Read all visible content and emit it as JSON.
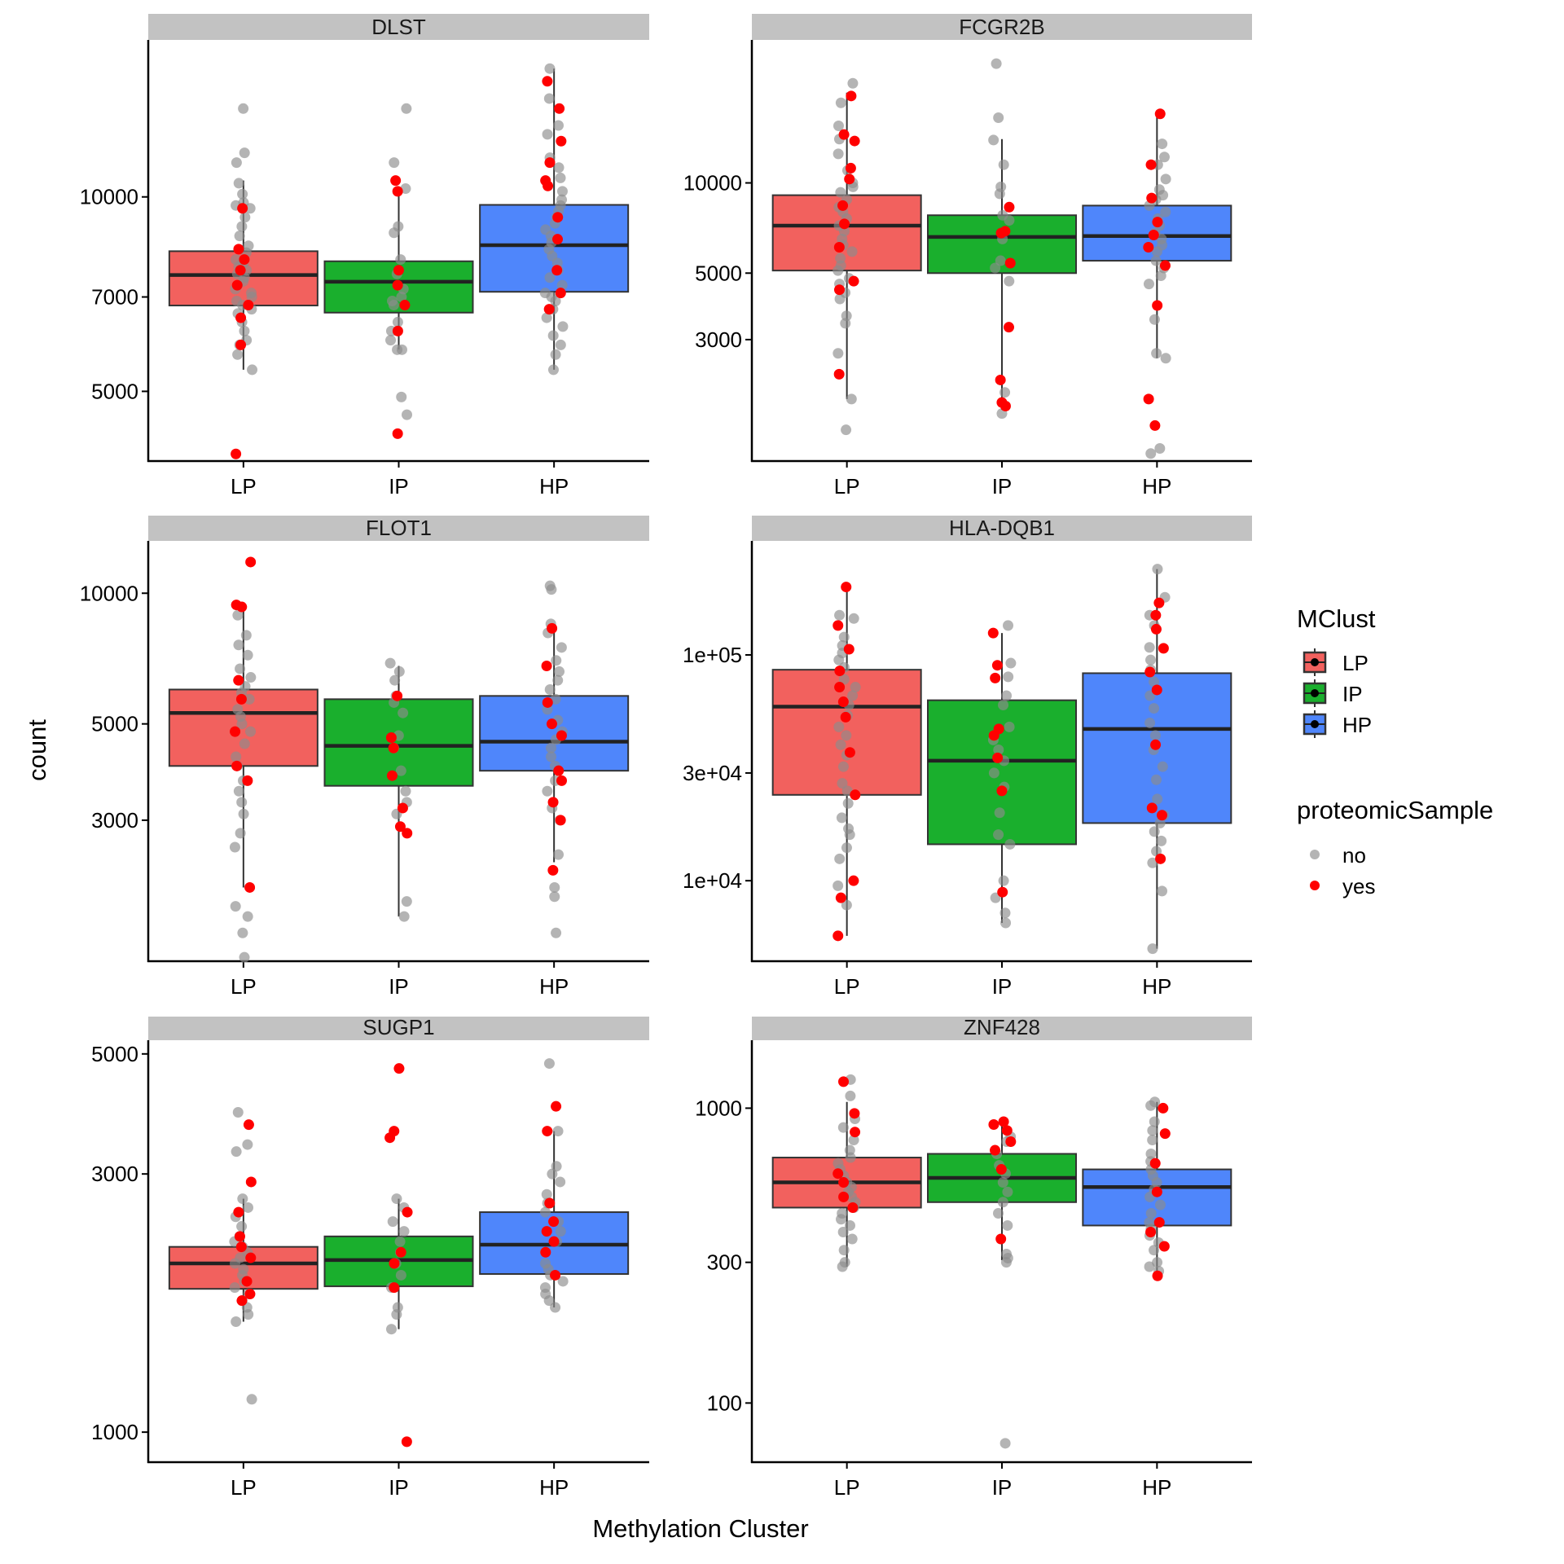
{
  "chart_data": {
    "type": "box",
    "xlabel": "Methylation Cluster",
    "ylabel": "count",
    "yscale": "log10",
    "categories": [
      "LP",
      "IP",
      "HP"
    ],
    "fill_colors": {
      "LP": "#F2615E",
      "IP": "#1AAF2D",
      "HP": "#4F86FB"
    },
    "point_colors": {
      "no": "#8C8C8C",
      "yes": "#FF0000"
    },
    "legends": [
      {
        "title": "MClust",
        "type": "fill",
        "entries": [
          "LP",
          "IP",
          "HP"
        ],
        "placement": "right"
      },
      {
        "title": "proteomicSample",
        "type": "point",
        "entries": [
          "no",
          "yes"
        ],
        "placement": "right"
      }
    ],
    "panels": [
      {
        "title": "DLST",
        "yticks": [
          5000,
          7000,
          10000
        ],
        "ytick_labels": [
          "5000",
          "7000",
          "10000"
        ],
        "ylim": [
          3900,
          17500
        ],
        "boxes": {
          "LP": {
            "whisker_low": 5400,
            "q1": 6790,
            "median": 7570,
            "q3": 8240,
            "whisker_high": 10600
          },
          "IP": {
            "whisker_low": 5800,
            "q1": 6620,
            "median": 7390,
            "q3": 7950,
            "whisker_high": 10300
          },
          "HP": {
            "whisker_low": 5400,
            "q1": 7130,
            "median": 8420,
            "q3": 9720,
            "whisker_high": 15800
          }
        },
        "points": {
          "LP": {
            "no": [
              13700,
              11700,
              11300,
              10500,
              10100,
              9800,
              9700,
              9600,
              9300,
              9000,
              8700,
              8400,
              8200,
              8000,
              7900,
              7800,
              7700,
              7600,
              7500,
              7400,
              7300,
              7200,
              7100,
              7000,
              6900,
              6800,
              6700,
              6600,
              6400,
              6200,
              6000,
              5900,
              5700,
              5400
            ],
            "yes": [
              9600,
              8300,
              8000,
              7700,
              7300,
              6800,
              6500,
              5900,
              4000
            ]
          },
          "IP": {
            "no": [
              13700,
              11300,
              10300,
              9000,
              8800,
              8000,
              7600,
              7200,
              7000,
              6900,
              6800,
              6400,
              6200,
              6000,
              5800,
              5800,
              4900,
              4600
            ],
            "yes": [
              10600,
              10200,
              7700,
              7300,
              6800,
              6200,
              4300
            ]
          },
          "HP": {
            "no": [
              15800,
              14200,
              12900,
              12500,
              11500,
              11100,
              10700,
              10200,
              9900,
              9700,
              9500,
              9300,
              9100,
              8900,
              8700,
              8500,
              8300,
              8100,
              7900,
              7700,
              7500,
              7300,
              7100,
              7000,
              6900,
              6700,
              6500,
              6300,
              6100,
              5900,
              5700,
              5400
            ],
            "yes": [
              15100,
              13700,
              12200,
              11300,
              10600,
              10400,
              9300,
              8600,
              7700,
              7100,
              6700
            ]
          }
        }
      },
      {
        "title": "FCGR2B",
        "yticks": [
          3000,
          5000,
          10000
        ],
        "ytick_labels": [
          "3000",
          "5000",
          "10000"
        ],
        "ylim": [
          1180,
          30000
        ],
        "boxes": {
          "LP": {
            "whisker_low": 1900,
            "q1": 5100,
            "median": 7200,
            "q3": 9100,
            "whisker_high": 20000
          },
          "IP": {
            "whisker_low": 1750,
            "q1": 5000,
            "median": 6600,
            "q3": 7800,
            "whisker_high": 14000
          },
          "HP": {
            "whisker_low": 2600,
            "q1": 5500,
            "median": 6650,
            "q3": 8400,
            "whisker_high": 17000
          }
        },
        "points": {
          "LP": {
            "no": [
              21500,
              18500,
              15500,
              14000,
              12500,
              11000,
              10000,
              9700,
              9300,
              8800,
              8300,
              8000,
              7600,
              7200,
              6900,
              6500,
              6200,
              5900,
              5600,
              5300,
              5100,
              4800,
              4600,
              4300,
              4100,
              3600,
              3400,
              2700,
              1900,
              1500
            ],
            "yes": [
              19500,
              14500,
              13800,
              11200,
              10300,
              8400,
              7300,
              6100,
              4700,
              4400,
              2300
            ]
          },
          "IP": {
            "no": [
              25000,
              16500,
              13900,
              11500,
              9700,
              9200,
              7800,
              7500,
              6500,
              5500,
              5200,
              4700,
              2000,
              1700
            ],
            "yes": [
              8300,
              6900,
              6800,
              5400,
              3300,
              2200,
              1850,
              1800
            ]
          },
          "HP": {
            "no": [
              13500,
              12200,
              11500,
              10300,
              9500,
              9100,
              8800,
              8400,
              8000,
              7600,
              7200,
              6800,
              6500,
              6200,
              5900,
              5500,
              5200,
              4900,
              4600,
              3500,
              2700,
              2600,
              1300,
              1250
            ],
            "yes": [
              17000,
              11500,
              8900,
              7400,
              6700,
              6100,
              5300,
              3900,
              1900,
              1550
            ]
          }
        }
      },
      {
        "title": "FLOT1",
        "yticks": [
          3000,
          5000,
          10000
        ],
        "ytick_labels": [
          "3000",
          "5000",
          "10000"
        ],
        "ylim": [
          1420,
          13200
        ],
        "boxes": {
          "LP": {
            "whisker_low": 2100,
            "q1": 4000,
            "median": 5300,
            "q3": 6000,
            "whisker_high": 9300
          },
          "IP": {
            "whisker_low": 1800,
            "q1": 3600,
            "median": 4450,
            "q3": 5700,
            "whisker_high": 6800
          },
          "HP": {
            "whisker_low": 2400,
            "q1": 3900,
            "median": 4550,
            "q3": 5800,
            "whisker_high": 8400
          }
        },
        "points": {
          "LP": {
            "no": [
              8900,
              8000,
              7600,
              7200,
              6700,
              6400,
              6100,
              5900,
              5700,
              5400,
              5200,
              5000,
              4800,
              4500,
              4200,
              4000,
              3700,
              3500,
              3300,
              3100,
              2800,
              2600,
              1900,
              1800,
              1650,
              1450
            ],
            "yes": [
              11800,
              9400,
              9300,
              6300,
              5700,
              4800,
              4000,
              3700,
              2100
            ]
          },
          "IP": {
            "no": [
              6900,
              6600,
              6300,
              5800,
              5600,
              5300,
              4700,
              4400,
              3900,
              3500,
              3300,
              3100,
              1950,
              1800
            ],
            "yes": [
              5800,
              4650,
              4400,
              3800,
              3200,
              2900,
              2800
            ]
          },
          "HP": {
            "no": [
              10400,
              10200,
              8500,
              8100,
              7500,
              7000,
              6600,
              6300,
              6000,
              5700,
              5400,
              5100,
              4800,
              4600,
              4400,
              4200,
              4000,
              3700,
              3500,
              3200,
              3000,
              2500,
              2100,
              2000,
              1650
            ],
            "yes": [
              8300,
              6800,
              5600,
              5000,
              4700,
              3900,
              3700,
              3300,
              3000,
              2300
            ]
          }
        }
      },
      {
        "title": "HLA-DQB1",
        "yticks": [
          10000,
          30000,
          100000
        ],
        "ytick_labels": [
          "1e+04",
          "3e+04",
          "1e+05"
        ],
        "ylim": [
          4400,
          320000
        ],
        "boxes": {
          "LP": {
            "whisker_low": 5700,
            "q1": 24000,
            "median": 59000,
            "q3": 86000,
            "whisker_high": 200000
          },
          "IP": {
            "whisker_low": 6500,
            "q1": 14500,
            "median": 34000,
            "q3": 63000,
            "whisker_high": 125000
          },
          "HP": {
            "whisker_low": 5000,
            "q1": 18000,
            "median": 47000,
            "q3": 83000,
            "whisker_high": 240000
          }
        },
        "points": {
          "LP": {
            "no": [
              150000,
              145000,
              120000,
              110000,
              102000,
              95000,
              88000,
              78000,
              72000,
              66000,
              60000,
              54000,
              48000,
              44000,
              40000,
              36000,
              32000,
              27000,
              25000,
              22000,
              19000,
              17000,
              16000,
              14000,
              12500,
              9500,
              7800
            ],
            "yes": [
              200000,
              135000,
              106000,
              85000,
              72000,
              62000,
              53000,
              37000,
              24000,
              10000,
              8400,
              5700
            ]
          },
          "IP": {
            "no": [
              135000,
              92000,
              80000,
              66000,
              60000,
              48000,
              42000,
              38000,
              34000,
              30000,
              26000,
              20000,
              16000,
              14500,
              10000,
              8400,
              7200,
              6500
            ],
            "yes": [
              125000,
              90000,
              79000,
              47000,
              44000,
              35000,
              25000,
              8900
            ]
          },
          "HP": {
            "no": [
              240000,
              180000,
              150000,
              135000,
              108000,
              95000,
              86000,
              76000,
              66000,
              58000,
              50000,
              44000,
              38000,
              32000,
              28000,
              23000,
              19500,
              18000,
              16500,
              15000,
              13500,
              12000,
              9000,
              5000
            ],
            "yes": [
              170000,
              150000,
              130000,
              107000,
              84000,
              70000,
              40000,
              21000,
              19500,
              12500
            ]
          }
        }
      },
      {
        "title": "SUGP1",
        "yticks": [
          1000,
          3000,
          5000
        ],
        "ytick_labels": [
          "1000",
          "3000",
          "5000"
        ],
        "ylim": [
          880,
          5300
        ],
        "boxes": {
          "LP": {
            "whisker_low": 1600,
            "q1": 1840,
            "median": 2050,
            "q3": 2200,
            "whisker_high": 2700
          },
          "IP": {
            "whisker_low": 1550,
            "q1": 1860,
            "median": 2080,
            "q3": 2300,
            "whisker_high": 2700
          },
          "HP": {
            "whisker_low": 1700,
            "q1": 1960,
            "median": 2220,
            "q3": 2550,
            "whisker_high": 3600
          }
        },
        "points": {
          "LP": {
            "no": [
              3900,
              3400,
              3300,
              2700,
              2600,
              2500,
              2400,
              2300,
              2250,
              2200,
              2150,
              2100,
              2050,
              2000,
              1950,
              1900,
              1850,
              1800,
              1750,
              1700,
              1650,
              1600,
              1150
            ],
            "yes": [
              3700,
              2900,
              2550,
              2300,
              2200,
              2100,
              1900,
              1800,
              1750
            ]
          },
          "IP": {
            "no": [
              2700,
              2600,
              2450,
              2350,
              2250,
              2150,
              2050,
              1950,
              1850,
              1700,
              1650,
              1550
            ],
            "yes": [
              4700,
              3600,
              3500,
              2550,
              2150,
              2050,
              1850,
              960
            ]
          },
          "HP": {
            "no": [
              4800,
              3600,
              3100,
              3000,
              2900,
              2750,
              2650,
              2550,
              2450,
              2350,
              2250,
              2150,
              2050,
              2000,
              1950,
              1900,
              1850,
              1800,
              1750,
              1700
            ],
            "yes": [
              4000,
              3600,
              2650,
              2450,
              2350,
              2250,
              2150,
              1950
            ]
          }
        }
      },
      {
        "title": "ZNF428",
        "yticks": [
          100,
          300,
          1000
        ],
        "ytick_labels": [
          "100",
          "300",
          "1000"
        ],
        "ylim": [
          63,
          1700
        ],
        "boxes": {
          "LP": {
            "whisker_low": 290,
            "q1": 460,
            "median": 560,
            "q3": 680,
            "whisker_high": 1050
          },
          "IP": {
            "whisker_low": 305,
            "q1": 480,
            "median": 580,
            "q3": 700,
            "whisker_high": 900
          },
          "HP": {
            "whisker_low": 280,
            "q1": 400,
            "median": 540,
            "q3": 620,
            "whisker_high": 1050
          }
        },
        "points": {
          "LP": {
            "no": [
              1250,
              1100,
              920,
              860,
              780,
              720,
              680,
              650,
              620,
              590,
              560,
              540,
              520,
              500,
              480,
              460,
              440,
              420,
              400,
              380,
              360,
              330,
              300,
              290
            ],
            "yes": [
              1230,
              960,
              830,
              600,
              560,
              500,
              460
            ]
          },
          "IP": {
            "no": [
              800,
              770,
              700,
              640,
              600,
              560,
              520,
              480,
              440,
              400,
              320,
              310,
              300,
              73
            ],
            "yes": [
              900,
              880,
              840,
              770,
              720,
              620,
              360
            ]
          },
          "HP": {
            "no": [
              1050,
              1020,
              900,
              840,
              780,
              700,
              660,
              620,
              590,
              560,
              530,
              500,
              470,
              440,
              410,
              390,
              370,
              350,
              330,
              300,
              290,
              280
            ],
            "yes": [
              1000,
              820,
              650,
              520,
              410,
              380,
              340,
              270
            ]
          }
        }
      }
    ]
  }
}
